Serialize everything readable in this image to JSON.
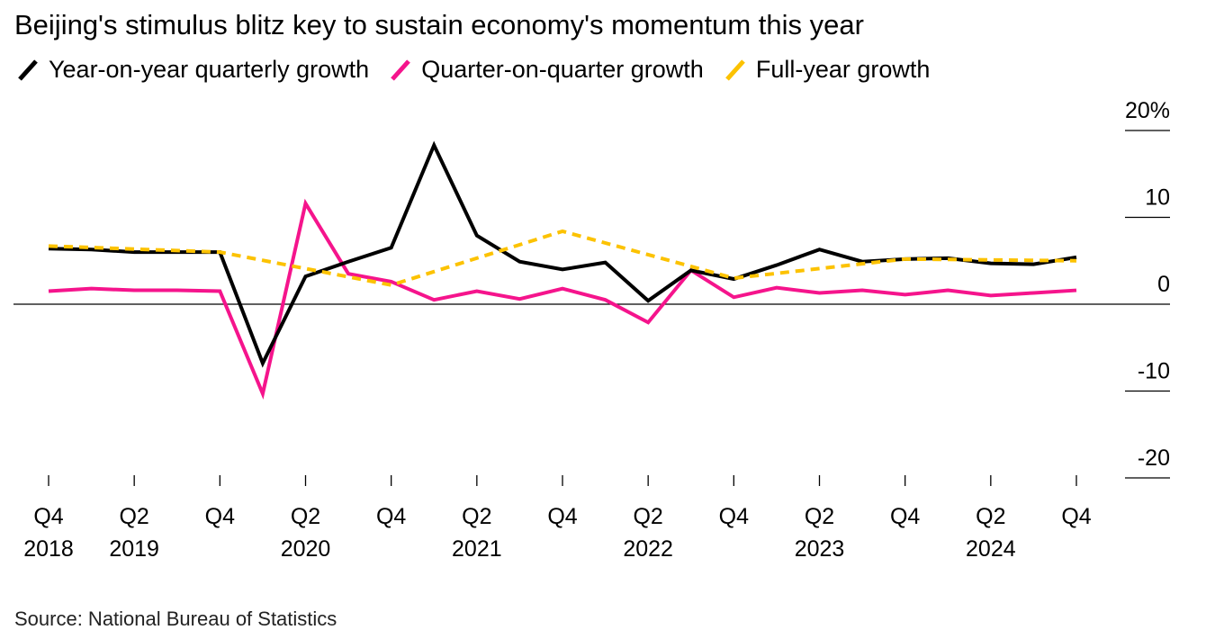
{
  "title": "Beijing's stimulus blitz key to sustain economy's momentum this year",
  "source": "Source: National Bureau of Statistics",
  "chart_data": {
    "type": "line",
    "title": "Beijing's stimulus blitz key to sustain economy's momentum this year",
    "xlabel": "",
    "ylabel": "",
    "ylim": [
      -20,
      20
    ],
    "yticks": [
      20,
      10,
      0,
      -10,
      -20
    ],
    "ytick_labels": [
      "20%",
      "10",
      "0",
      "-10",
      "-20"
    ],
    "legend_position": "top-left",
    "x": [
      "Q4 2018",
      "Q1 2019",
      "Q2 2019",
      "Q3 2019",
      "Q4 2019",
      "Q1 2020",
      "Q2 2020",
      "Q3 2020",
      "Q4 2020",
      "Q1 2021",
      "Q2 2021",
      "Q3 2021",
      "Q4 2021",
      "Q1 2022",
      "Q2 2022",
      "Q3 2022",
      "Q4 2022",
      "Q1 2023",
      "Q2 2023",
      "Q3 2023",
      "Q4 2023",
      "Q1 2024",
      "Q2 2024",
      "Q3 2024",
      "Q4 2024"
    ],
    "xtick_labels": [
      {
        "q": "Q4",
        "y": "2018"
      },
      {
        "q": "Q2",
        "y": "2019"
      },
      {
        "q": "Q4",
        "y": ""
      },
      {
        "q": "Q2",
        "y": "2020"
      },
      {
        "q": "Q4",
        "y": ""
      },
      {
        "q": "Q2",
        "y": "2021"
      },
      {
        "q": "Q4",
        "y": ""
      },
      {
        "q": "Q2",
        "y": "2022"
      },
      {
        "q": "Q4",
        "y": ""
      },
      {
        "q": "Q2",
        "y": "2023"
      },
      {
        "q": "Q4",
        "y": ""
      },
      {
        "q": "Q2",
        "y": "2024"
      },
      {
        "q": "Q4",
        "y": ""
      }
    ],
    "series": [
      {
        "name": "Year-on-year quarterly growth",
        "color": "#000000",
        "dashed": false,
        "values": [
          6.4,
          6.3,
          6.0,
          6.0,
          6.0,
          -6.8,
          3.2,
          4.9,
          6.5,
          18.3,
          7.9,
          4.9,
          4.0,
          4.8,
          0.4,
          3.9,
          2.9,
          4.5,
          6.3,
          4.9,
          5.2,
          5.3,
          4.7,
          4.6,
          5.4
        ]
      },
      {
        "name": "Quarter-on-quarter growth",
        "color": "#f5148c",
        "dashed": false,
        "values": [
          1.5,
          1.8,
          1.6,
          1.6,
          1.5,
          -10.3,
          11.6,
          3.5,
          2.6,
          0.5,
          1.5,
          0.6,
          1.8,
          0.5,
          -2.1,
          3.9,
          0.8,
          1.9,
          1.3,
          1.6,
          1.1,
          1.6,
          1.0,
          1.3,
          1.6
        ]
      },
      {
        "name": "Full-year growth",
        "color": "#fcc200",
        "dashed": true,
        "points": [
          [
            0,
            6.7
          ],
          [
            4,
            6.0
          ],
          [
            8,
            2.2
          ],
          [
            12,
            8.4
          ],
          [
            16,
            3.0
          ],
          [
            20,
            5.2
          ],
          [
            24,
            5.0
          ]
        ]
      }
    ]
  }
}
